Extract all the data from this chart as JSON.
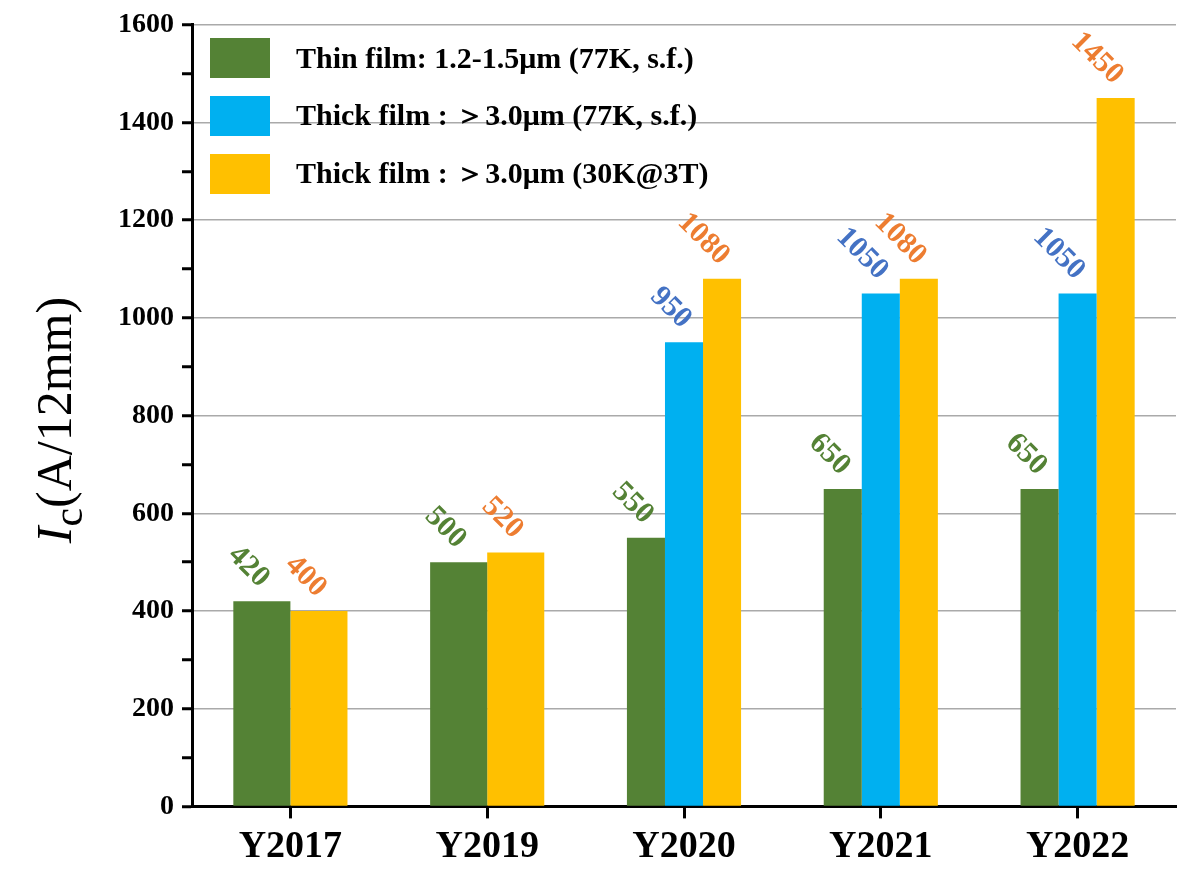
{
  "chart_data": {
    "type": "bar",
    "ylabel": "I$_{c}$(A/12mm)",
    "categories": [
      "Y2017",
      "Y2019",
      "Y2020",
      "Y2021",
      "Y2022"
    ],
    "series": [
      {
        "name": "Thin film: 1.2-1.5μm (77K, s.f.)",
        "color": "#548235",
        "values": [
          420,
          500,
          550,
          650,
          650
        ]
      },
      {
        "name": "Thick film : ＞3.0μm (77K, s.f.)",
        "color": "#00b0f0",
        "values": [
          null,
          null,
          950,
          1050,
          1050
        ]
      },
      {
        "name": "Thick film : ＞3.0μm (30K@3T)",
        "color": "#ffc000",
        "values": [
          400,
          520,
          1080,
          1080,
          1450
        ]
      }
    ],
    "ylim": [
      0,
      1600
    ],
    "yticks": [
      0,
      {
        "value": 100,
        "label": null
      },
      200,
      {
        "value": 300,
        "label": null
      },
      400,
      {
        "value": 500,
        "label": null
      },
      600,
      {
        "value": 700,
        "label": null
      },
      800,
      {
        "value": 900,
        "label": null
      },
      1000,
      {
        "value": 1100,
        "label": null
      },
      1200,
      {
        "value": 1300,
        "label": null
      },
      1400,
      {
        "value": 1500,
        "label": null
      },
      1600
    ],
    "grid": "y",
    "legend": "top left",
    "data_labels": true
  }
}
